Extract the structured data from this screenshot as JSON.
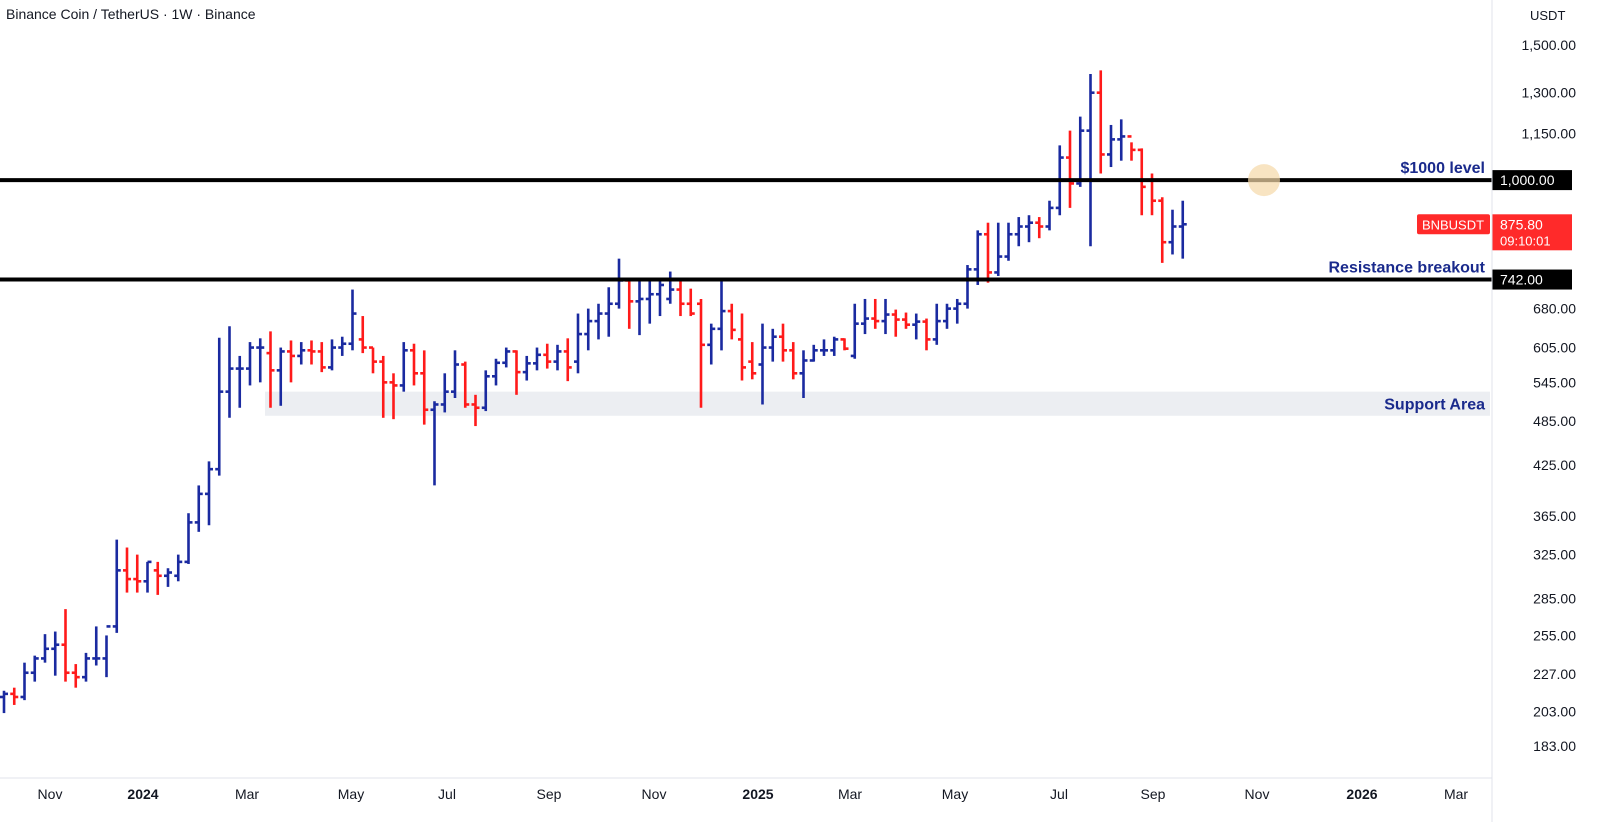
{
  "header": {
    "symbol": "Binance Coin / TetherUS",
    "interval": "1W",
    "exchange": "Binance",
    "title": "Binance Coin / TetherUS · 1W · Binance",
    "currency": "USDT"
  },
  "colors": {
    "up": "#1a2aa0",
    "down": "#ff1a1a",
    "level_line": "#000000",
    "annotation_text": "#1a2a8c",
    "support_band": "#eceef2",
    "price_badge": "#ff2a2a"
  },
  "chart_data": {
    "type": "ohlc",
    "scale": "log",
    "ylim": [
      170,
      1600
    ],
    "x_tick_labels": [
      "Nov",
      "2024",
      "Mar",
      "May",
      "Jul",
      "Sep",
      "Nov",
      "2025",
      "Mar",
      "May",
      "Jul",
      "Sep",
      "Nov",
      "2026",
      "Mar"
    ],
    "y_tick_labels": [
      {
        "value": 1500,
        "label": "1,500.00"
      },
      {
        "value": 1300,
        "label": "1,300.00"
      },
      {
        "value": 1150,
        "label": "1,150.00"
      },
      {
        "value": 680,
        "label": "680.00"
      },
      {
        "value": 605,
        "label": "605.00"
      },
      {
        "value": 545,
        "label": "545.00"
      },
      {
        "value": 485,
        "label": "485.00"
      },
      {
        "value": 425,
        "label": "425.00"
      },
      {
        "value": 365,
        "label": "365.00"
      },
      {
        "value": 325,
        "label": "325.00"
      },
      {
        "value": 285,
        "label": "285.00"
      },
      {
        "value": 255,
        "label": "255.00"
      },
      {
        "value": 227,
        "label": "227.00"
      },
      {
        "value": 203,
        "label": "203.00"
      },
      {
        "value": 183,
        "label": "183.00"
      }
    ],
    "levels": [
      {
        "value": 1000,
        "label": "1,000.00",
        "annotation": "$1000 level"
      },
      {
        "value": 742,
        "label": "742.00",
        "annotation": "Resistance breakout"
      }
    ],
    "support_area": {
      "low": 493,
      "high": 530,
      "label": "Support Area"
    },
    "last_price": {
      "symbol": "BNBUSDT",
      "price": "875.80",
      "countdown": "09:10:01",
      "value": 875.8
    },
    "series": [
      {
        "date": "2023-10-16",
        "open": 212,
        "high": 216,
        "low": 202,
        "close": 214
      },
      {
        "date": "2023-10-23",
        "open": 214,
        "high": 218,
        "low": 207,
        "close": 212
      },
      {
        "date": "2023-10-30",
        "open": 212,
        "high": 235,
        "low": 210,
        "close": 228
      },
      {
        "date": "2023-11-06",
        "open": 228,
        "high": 240,
        "low": 222,
        "close": 238
      },
      {
        "date": "2023-11-13",
        "open": 238,
        "high": 256,
        "low": 235,
        "close": 245
      },
      {
        "date": "2023-11-20",
        "open": 245,
        "high": 258,
        "low": 226,
        "close": 248
      },
      {
        "date": "2023-11-27",
        "open": 248,
        "high": 276,
        "low": 222,
        "close": 228
      },
      {
        "date": "2023-12-04",
        "open": 228,
        "high": 234,
        "low": 218,
        "close": 225
      },
      {
        "date": "2023-12-11",
        "open": 225,
        "high": 242,
        "low": 222,
        "close": 238
      },
      {
        "date": "2023-12-18",
        "open": 238,
        "high": 262,
        "low": 233,
        "close": 238
      },
      {
        "date": "2023-12-25",
        "open": 238,
        "high": 255,
        "low": 225,
        "close": 262
      },
      {
        "date": "2024-01-01",
        "open": 262,
        "high": 340,
        "low": 257,
        "close": 310
      },
      {
        "date": "2024-01-08",
        "open": 310,
        "high": 332,
        "low": 290,
        "close": 302
      },
      {
        "date": "2024-01-15",
        "open": 302,
        "high": 325,
        "low": 290,
        "close": 300
      },
      {
        "date": "2024-01-22",
        "open": 300,
        "high": 318,
        "low": 290,
        "close": 318
      },
      {
        "date": "2024-01-29",
        "open": 310,
        "high": 318,
        "low": 288,
        "close": 305
      },
      {
        "date": "2024-02-05",
        "open": 305,
        "high": 312,
        "low": 295,
        "close": 308
      },
      {
        "date": "2024-02-12",
        "open": 305,
        "high": 325,
        "low": 300,
        "close": 318
      },
      {
        "date": "2024-02-19",
        "open": 318,
        "high": 368,
        "low": 316,
        "close": 358
      },
      {
        "date": "2024-02-26",
        "open": 358,
        "high": 400,
        "low": 348,
        "close": 390
      },
      {
        "date": "2024-03-04",
        "open": 390,
        "high": 430,
        "low": 355,
        "close": 420
      },
      {
        "date": "2024-03-11",
        "open": 420,
        "high": 623,
        "low": 412,
        "close": 530
      },
      {
        "date": "2024-03-18",
        "open": 530,
        "high": 645,
        "low": 490,
        "close": 568
      },
      {
        "date": "2024-03-25",
        "open": 568,
        "high": 590,
        "low": 505,
        "close": 568
      },
      {
        "date": "2024-04-01",
        "open": 568,
        "high": 615,
        "low": 540,
        "close": 605
      },
      {
        "date": "2024-04-08",
        "open": 605,
        "high": 622,
        "low": 545,
        "close": 605
      },
      {
        "date": "2024-04-15",
        "open": 595,
        "high": 635,
        "low": 505,
        "close": 565
      },
      {
        "date": "2024-04-22",
        "open": 565,
        "high": 605,
        "low": 508,
        "close": 598
      },
      {
        "date": "2024-04-29",
        "open": 598,
        "high": 618,
        "low": 545,
        "close": 590
      },
      {
        "date": "2024-05-06",
        "open": 590,
        "high": 615,
        "low": 575,
        "close": 600
      },
      {
        "date": "2024-05-13",
        "open": 600,
        "high": 618,
        "low": 575,
        "close": 598
      },
      {
        "date": "2024-05-20",
        "open": 598,
        "high": 615,
        "low": 562,
        "close": 570
      },
      {
        "date": "2024-05-27",
        "open": 570,
        "high": 620,
        "low": 565,
        "close": 605
      },
      {
        "date": "2024-06-03",
        "open": 605,
        "high": 625,
        "low": 590,
        "close": 612
      },
      {
        "date": "2024-06-10",
        "open": 612,
        "high": 720,
        "low": 600,
        "close": 670
      },
      {
        "date": "2024-06-17",
        "open": 620,
        "high": 665,
        "low": 595,
        "close": 605
      },
      {
        "date": "2024-06-24",
        "open": 605,
        "high": 605,
        "low": 560,
        "close": 580
      },
      {
        "date": "2024-07-01",
        "open": 580,
        "high": 590,
        "low": 490,
        "close": 545
      },
      {
        "date": "2024-07-08",
        "open": 545,
        "high": 560,
        "low": 488,
        "close": 540
      },
      {
        "date": "2024-07-15",
        "open": 540,
        "high": 615,
        "low": 530,
        "close": 600
      },
      {
        "date": "2024-07-22",
        "open": 600,
        "high": 612,
        "low": 540,
        "close": 560
      },
      {
        "date": "2024-07-29",
        "open": 560,
        "high": 600,
        "low": 480,
        "close": 502
      },
      {
        "date": "2024-08-05",
        "open": 502,
        "high": 515,
        "low": 400,
        "close": 510
      },
      {
        "date": "2024-08-12",
        "open": 510,
        "high": 560,
        "low": 498,
        "close": 530
      },
      {
        "date": "2024-08-19",
        "open": 530,
        "high": 600,
        "low": 520,
        "close": 575
      },
      {
        "date": "2024-08-26",
        "open": 575,
        "high": 580,
        "low": 505,
        "close": 510
      },
      {
        "date": "2024-09-02",
        "open": 510,
        "high": 525,
        "low": 478,
        "close": 505
      },
      {
        "date": "2024-09-09",
        "open": 505,
        "high": 565,
        "low": 500,
        "close": 555
      },
      {
        "date": "2024-09-16",
        "open": 555,
        "high": 585,
        "low": 540,
        "close": 578
      },
      {
        "date": "2024-09-23",
        "open": 578,
        "high": 605,
        "low": 570,
        "close": 598
      },
      {
        "date": "2024-09-30",
        "open": 598,
        "high": 600,
        "low": 525,
        "close": 562
      },
      {
        "date": "2024-10-07",
        "open": 562,
        "high": 590,
        "low": 548,
        "close": 577
      },
      {
        "date": "2024-10-14",
        "open": 577,
        "high": 605,
        "low": 565,
        "close": 592
      },
      {
        "date": "2024-10-21",
        "open": 592,
        "high": 612,
        "low": 568,
        "close": 580
      },
      {
        "date": "2024-10-28",
        "open": 580,
        "high": 610,
        "low": 565,
        "close": 598
      },
      {
        "date": "2024-11-04",
        "open": 598,
        "high": 622,
        "low": 547,
        "close": 570
      },
      {
        "date": "2024-11-11",
        "open": 580,
        "high": 670,
        "low": 560,
        "close": 630
      },
      {
        "date": "2024-11-18",
        "open": 630,
        "high": 680,
        "low": 600,
        "close": 655
      },
      {
        "date": "2024-11-25",
        "open": 655,
        "high": 690,
        "low": 620,
        "close": 670
      },
      {
        "date": "2024-12-02",
        "open": 670,
        "high": 725,
        "low": 625,
        "close": 690
      },
      {
        "date": "2024-12-09",
        "open": 690,
        "high": 790,
        "low": 680,
        "close": 740
      },
      {
        "date": "2024-12-16",
        "open": 740,
        "high": 742,
        "low": 640,
        "close": 695
      },
      {
        "date": "2024-12-23",
        "open": 695,
        "high": 745,
        "low": 628,
        "close": 700
      },
      {
        "date": "2024-12-30",
        "open": 700,
        "high": 742,
        "low": 650,
        "close": 710
      },
      {
        "date": "2025-01-06",
        "open": 710,
        "high": 742,
        "low": 665,
        "close": 730
      },
      {
        "date": "2025-01-13",
        "open": 700,
        "high": 760,
        "low": 690,
        "close": 720
      },
      {
        "date": "2025-01-20",
        "open": 720,
        "high": 740,
        "low": 665,
        "close": 690
      },
      {
        "date": "2025-01-27",
        "open": 690,
        "high": 722,
        "low": 665,
        "close": 670
      },
      {
        "date": "2025-02-03",
        "open": 690,
        "high": 700,
        "low": 505,
        "close": 610
      },
      {
        "date": "2025-02-10",
        "open": 610,
        "high": 650,
        "low": 575,
        "close": 640
      },
      {
        "date": "2025-02-17",
        "open": 640,
        "high": 740,
        "low": 600,
        "close": 675
      },
      {
        "date": "2025-02-24",
        "open": 675,
        "high": 690,
        "low": 620,
        "close": 638
      },
      {
        "date": "2025-03-03",
        "open": 620,
        "high": 670,
        "low": 548,
        "close": 570
      },
      {
        "date": "2025-03-10",
        "open": 580,
        "high": 615,
        "low": 550,
        "close": 560
      },
      {
        "date": "2025-03-17",
        "open": 575,
        "high": 650,
        "low": 510,
        "close": 605
      },
      {
        "date": "2025-03-24",
        "open": 605,
        "high": 640,
        "low": 580,
        "close": 625
      },
      {
        "date": "2025-03-31",
        "open": 625,
        "high": 650,
        "low": 580,
        "close": 600
      },
      {
        "date": "2025-04-07",
        "open": 600,
        "high": 615,
        "low": 550,
        "close": 560
      },
      {
        "date": "2025-04-14",
        "open": 560,
        "high": 600,
        "low": 520,
        "close": 582
      },
      {
        "date": "2025-04-21",
        "open": 582,
        "high": 610,
        "low": 580,
        "close": 600
      },
      {
        "date": "2025-04-28",
        "open": 600,
        "high": 620,
        "low": 590,
        "close": 600
      },
      {
        "date": "2025-05-05",
        "open": 600,
        "high": 625,
        "low": 590,
        "close": 620
      },
      {
        "date": "2025-05-12",
        "open": 620,
        "high": 622,
        "low": 600,
        "close": 603
      },
      {
        "date": "2025-05-19",
        "open": 590,
        "high": 690,
        "low": 585,
        "close": 650
      },
      {
        "date": "2025-05-26",
        "open": 650,
        "high": 700,
        "low": 630,
        "close": 660
      },
      {
        "date": "2025-06-02",
        "open": 660,
        "high": 700,
        "low": 640,
        "close": 655
      },
      {
        "date": "2025-06-09",
        "open": 655,
        "high": 700,
        "low": 630,
        "close": 668
      },
      {
        "date": "2025-06-16",
        "open": 668,
        "high": 678,
        "low": 625,
        "close": 658
      },
      {
        "date": "2025-06-23",
        "open": 658,
        "high": 672,
        "low": 640,
        "close": 648
      },
      {
        "date": "2025-06-30",
        "open": 648,
        "high": 670,
        "low": 620,
        "close": 654
      },
      {
        "date": "2025-07-07",
        "open": 654,
        "high": 660,
        "low": 600,
        "close": 620
      },
      {
        "date": "2025-07-14",
        "open": 620,
        "high": 690,
        "low": 610,
        "close": 655
      },
      {
        "date": "2025-07-21",
        "open": 655,
        "high": 690,
        "low": 640,
        "close": 680
      },
      {
        "date": "2025-07-28",
        "open": 680,
        "high": 700,
        "low": 650,
        "close": 690
      },
      {
        "date": "2025-08-04",
        "open": 690,
        "high": 775,
        "low": 680,
        "close": 765
      },
      {
        "date": "2025-08-11",
        "open": 765,
        "high": 860,
        "low": 730,
        "close": 850
      },
      {
        "date": "2025-08-18",
        "open": 850,
        "high": 880,
        "low": 735,
        "close": 758
      },
      {
        "date": "2025-08-25",
        "open": 758,
        "high": 880,
        "low": 750,
        "close": 795
      },
      {
        "date": "2025-09-01",
        "open": 795,
        "high": 880,
        "low": 785,
        "close": 850
      },
      {
        "date": "2025-09-08",
        "open": 850,
        "high": 895,
        "low": 820,
        "close": 870
      },
      {
        "date": "2025-09-15",
        "open": 870,
        "high": 900,
        "low": 830,
        "close": 880
      },
      {
        "date": "2025-09-22",
        "open": 880,
        "high": 895,
        "low": 840,
        "close": 870
      },
      {
        "date": "2025-09-29",
        "open": 870,
        "high": 940,
        "low": 860,
        "close": 920
      },
      {
        "date": "2025-10-06",
        "open": 920,
        "high": 1110,
        "low": 900,
        "close": 1070
      },
      {
        "date": "2025-10-13",
        "open": 1070,
        "high": 1160,
        "low": 920,
        "close": 990
      },
      {
        "date": "2025-10-20",
        "open": 990,
        "high": 1210,
        "low": 980,
        "close": 1160
      },
      {
        "date": "2025-10-27",
        "open": 1160,
        "high": 1375,
        "low": 820,
        "close": 1300
      },
      {
        "date": "2025-11-03",
        "open": 1300,
        "high": 1390,
        "low": 1020,
        "close": 1080
      },
      {
        "date": "2025-11-10",
        "open": 1080,
        "high": 1180,
        "low": 1040,
        "close": 1130
      },
      {
        "date": "2025-11-17",
        "open": 1130,
        "high": 1200,
        "low": 1060,
        "close": 1140
      },
      {
        "date": "2025-11-24",
        "open": 1140,
        "high": 1120,
        "low": 1060,
        "close": 1095
      },
      {
        "date": "2025-12-01",
        "open": 1095,
        "high": 1100,
        "low": 900,
        "close": 980
      },
      {
        "date": "2025-12-08",
        "open": 1000,
        "high": 1020,
        "low": 900,
        "close": 940
      },
      {
        "date": "2025-12-15",
        "open": 940,
        "high": 950,
        "low": 780,
        "close": 830
      },
      {
        "date": "2025-12-22",
        "open": 830,
        "high": 915,
        "low": 800,
        "close": 870
      },
      {
        "date": "2025-12-29",
        "open": 870,
        "high": 940,
        "low": 790,
        "close": 875.8
      }
    ]
  }
}
